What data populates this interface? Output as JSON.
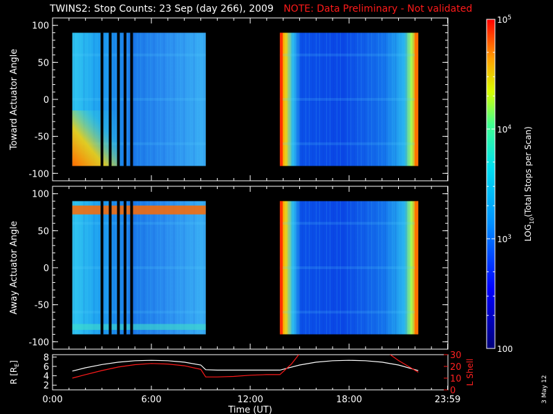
{
  "title": "TWINS2: Stop Counts: 23 Sep (day 266), 2009",
  "note": "NOTE: Data Preliminary - Not validated",
  "date_stamp": "3 May 12",
  "colorbar": {
    "label": "LOG10(Total Stops per Scan)",
    "label_main": "LOG",
    "label_sub": "10",
    "label_rest": "(Total Stops per Scan)",
    "ticks": [
      {
        "label_base": "10",
        "label_exp": "5",
        "value": 100000
      },
      {
        "label_base": "10",
        "label_exp": "4",
        "value": 10000
      },
      {
        "label_base": "10",
        "label_exp": "3",
        "value": 1000
      },
      {
        "label_base": "100",
        "label_exp": "",
        "value": 100
      }
    ]
  },
  "chart_data": [
    {
      "type": "heatmap",
      "ylabel": "Toward Actuator Angle",
      "ylim": [
        -110,
        110
      ],
      "yticks": [
        100,
        50,
        0,
        -50,
        -100
      ],
      "xlim_hours": [
        0,
        24
      ],
      "xticks_hours": [
        0,
        6,
        12,
        18,
        23.98
      ],
      "xtick_labels": [],
      "color_scale": "log",
      "zlim": [
        100,
        100000
      ],
      "data_blocks": [
        {
          "t_start_h": 1.2,
          "t_end_h": 9.3,
          "angle_range": [
            -90,
            90
          ]
        },
        {
          "t_start_h": 13.8,
          "t_end_h": 22.2,
          "angle_range": [
            -90,
            90
          ]
        }
      ],
      "data_gaps_h": [
        3.0,
        3.5,
        4.0,
        4.4,
        4.8
      ]
    },
    {
      "type": "heatmap",
      "ylabel": "Away Actuator Angle",
      "ylim": [
        -110,
        110
      ],
      "yticks": [
        100,
        50,
        0,
        -50,
        -100
      ],
      "xlim_hours": [
        0,
        24
      ],
      "xticks_hours": [
        0,
        6,
        12,
        18,
        23.98
      ],
      "xtick_labels": [],
      "color_scale": "log",
      "zlim": [
        100,
        100000
      ],
      "data_blocks": [
        {
          "t_start_h": 1.2,
          "t_end_h": 9.3,
          "angle_range": [
            -90,
            90
          ]
        },
        {
          "t_start_h": 13.8,
          "t_end_h": 22.2,
          "angle_range": [
            -90,
            90
          ]
        }
      ],
      "data_gaps_h": [
        3.0,
        3.5,
        4.0,
        4.4,
        4.8
      ]
    },
    {
      "type": "line",
      "ylabel_left": "R [RE]",
      "ylabel_left_main": "R [R",
      "ylabel_left_sub": "E",
      "ylabel_left_end": "]",
      "ylabel_right": "L Shell",
      "xlabel": "Time (UT)",
      "ylim_left": [
        1,
        8.5
      ],
      "yticks_left": [
        2,
        4,
        6,
        8
      ],
      "ylim_right": [
        0,
        30
      ],
      "yticks_right": [
        0,
        10,
        20,
        30
      ],
      "xticks_hours": [
        0,
        6,
        12,
        18,
        23.98
      ],
      "xtick_labels": [
        "0:00",
        "6:00",
        "12:00",
        "18:00",
        "23:59"
      ],
      "series": [
        {
          "name": "",
          "color": "#ffffff",
          "x": [
            1.2,
            2,
            3,
            4,
            5,
            6,
            7,
            8,
            9,
            9.3,
            10,
            11,
            12,
            13,
            13.8,
            15,
            16,
            17,
            18,
            19,
            20,
            21,
            22.2
          ],
          "y": [
            5.0,
            5.7,
            6.4,
            6.9,
            7.2,
            7.3,
            7.2,
            6.9,
            6.3,
            5.3,
            5.2,
            5.2,
            5.2,
            5.2,
            5.2,
            6.3,
            6.9,
            7.2,
            7.3,
            7.2,
            6.9,
            6.3,
            5.1
          ]
        },
        {
          "name": "",
          "color": "#ff1a1a",
          "axis": "right",
          "x": [
            1.2,
            2,
            3,
            4,
            5,
            6,
            7,
            8,
            9,
            9.3,
            10,
            11,
            12,
            13,
            13.8,
            14.5,
            15.0
          ],
          "y": [
            10,
            13,
            16.5,
            19.5,
            21.5,
            22.5,
            22,
            20.5,
            17.5,
            11,
            11,
            11.5,
            12.5,
            13,
            13,
            22,
            31
          ]
        },
        {
          "name": "",
          "color": "#ff1a1a",
          "axis": "right",
          "x": [
            20.4,
            21.0,
            21.6,
            22.2
          ],
          "y": [
            31,
            25,
            20,
            15
          ]
        }
      ]
    }
  ]
}
